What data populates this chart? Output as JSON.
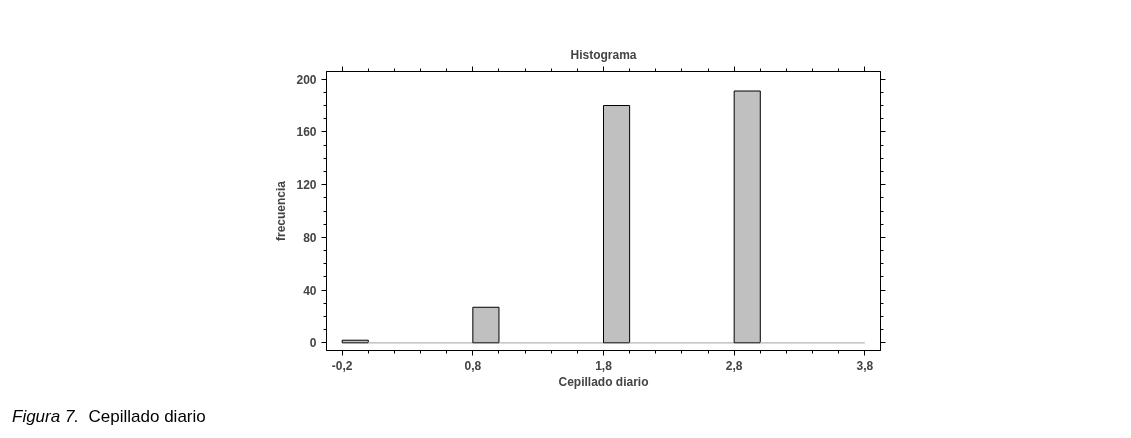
{
  "chart_data": {
    "type": "histogram",
    "title": "Histograma",
    "xlabel": "Cepillado diario",
    "ylabel": "frecuencia",
    "bins": [
      -0.2,
      0.0,
      0.2,
      0.4,
      0.6,
      0.8,
      1.0,
      1.2,
      1.4,
      1.6,
      1.8,
      2.0,
      2.2,
      2.4,
      2.6,
      2.8,
      3.0,
      3.2,
      3.4,
      3.6,
      3.8
    ],
    "values": [
      2,
      0,
      0,
      0,
      0,
      27,
      0,
      0,
      0,
      0,
      180,
      0,
      0,
      0,
      0,
      191,
      0,
      0,
      0,
      0
    ],
    "color": "#c0c0c0",
    "xlim": [
      -0.32,
      3.92
    ],
    "ylim": [
      -5.8,
      205.8
    ],
    "xticks": [
      {
        "value": -0.2,
        "label": "-0,2"
      },
      {
        "value": 0.8,
        "label": "0,8"
      },
      {
        "value": 1.8,
        "label": "1,8"
      },
      {
        "value": 2.8,
        "label": "2,8"
      },
      {
        "value": 3.8,
        "label": "3,8"
      }
    ],
    "yticks": [
      0,
      40,
      80,
      120,
      160,
      200
    ],
    "grid": false,
    "legend": false,
    "annotations": [
      "Figura 7.",
      "Cepillado diario"
    ]
  }
}
